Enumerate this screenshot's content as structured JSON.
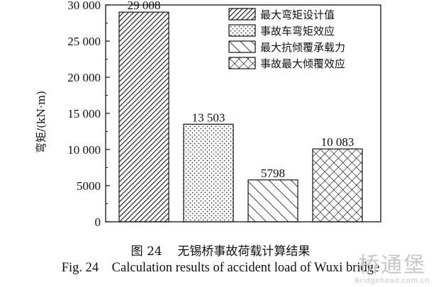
{
  "chart_data": {
    "type": "bar",
    "categories": [
      "最大弯矩设计值",
      "事故车弯矩效应",
      "最大抗倾覆承载力",
      "事故最大倾覆效应"
    ],
    "values": [
      29008,
      13503,
      5798,
      10083
    ],
    "data_labels": [
      "29 008",
      "13 503",
      "5798",
      "10 083"
    ],
    "ylabel": "弯矩/(kN·m)",
    "xlabel": "",
    "ylim": [
      0,
      30000
    ],
    "yticks": [
      0,
      5000,
      10000,
      15000,
      20000,
      25000,
      30000
    ],
    "ytick_labels": [
      "0",
      "5000",
      "10 000",
      "15 000",
      "20 000",
      "25 000",
      "30 000"
    ],
    "legend": {
      "placement": "top-right",
      "entries": [
        "最大弯矩设计值",
        "事故车弯矩效应",
        "最大抗倾覆承载力",
        "事故最大倾覆效应"
      ]
    },
    "patterns": [
      "diagonal-hatch",
      "dots",
      "wide-diagonal-hatch",
      "crosshatch"
    ],
    "grid": false
  },
  "caption": {
    "cn": "图 24    无锡桥事故荷载计算结果",
    "en": "Fig. 24    Calculation results of accident load of Wuxi bridge"
  },
  "watermark": {
    "logo": "桥通堡",
    "url": "Bridgehead.com.cn"
  },
  "colors": {
    "ink": "#111111",
    "background": "#ffffff",
    "watermark": "#c8c8c8"
  }
}
